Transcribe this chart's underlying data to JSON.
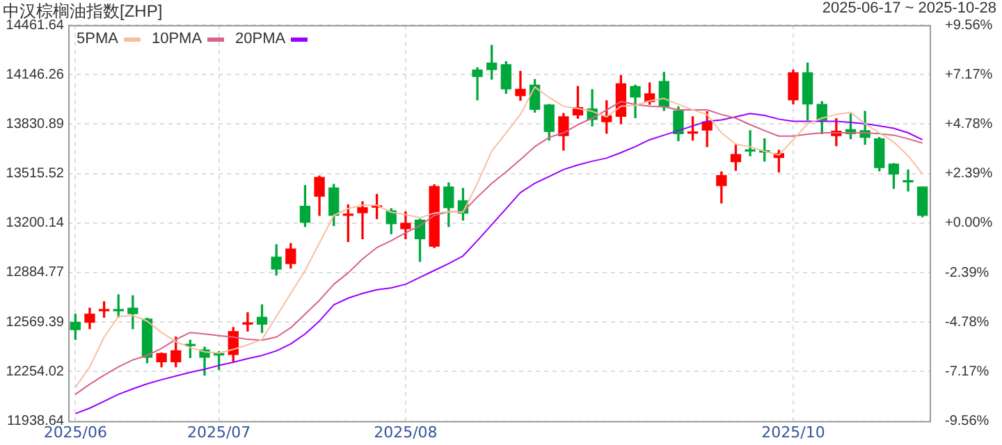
{
  "chart_data": {
    "type": "candlestick",
    "title": "中汉棕榈油指数[ZHP]",
    "subtitle": "2025-06-17 ~ 2025-10-28",
    "categories": [
      "2025/06",
      null,
      null,
      null,
      null,
      null,
      null,
      null,
      null,
      null,
      "2025/07",
      null,
      null,
      null,
      null,
      null,
      null,
      null,
      null,
      null,
      null,
      null,
      null,
      "2025/08",
      null,
      null,
      null,
      null,
      null,
      null,
      null,
      null,
      null,
      null,
      null,
      null,
      null,
      null,
      null,
      null,
      null,
      null,
      null,
      null,
      null,
      null,
      null,
      null,
      null,
      null,
      "2025/10",
      null,
      null,
      null,
      null,
      null,
      null,
      null,
      null,
      null
    ],
    "ohlc": [
      [
        12568,
        12620,
        12459,
        12521
      ],
      [
        12568,
        12658,
        12527,
        12620
      ],
      [
        12641,
        12699,
        12600,
        12647
      ],
      [
        12647,
        12743,
        12600,
        12641
      ],
      [
        12658,
        12737,
        12527,
        12623
      ],
      [
        12588,
        12594,
        12310,
        12345
      ],
      [
        12316,
        12372,
        12284,
        12369
      ],
      [
        12316,
        12474,
        12284,
        12387
      ],
      [
        12424,
        12454,
        12343,
        12419
      ],
      [
        12392,
        12410,
        12231,
        12345
      ],
      [
        12366,
        12381,
        12267,
        12360
      ],
      [
        12363,
        12535,
        12319,
        12509
      ],
      [
        12556,
        12629,
        12512,
        12562
      ],
      [
        12600,
        12679,
        12503,
        12556
      ],
      [
        12983,
        13062,
        12869,
        12907
      ],
      [
        12942,
        13070,
        12913,
        13035
      ],
      [
        13307,
        13439,
        13178,
        13205
      ],
      [
        13371,
        13500,
        13249,
        13491
      ],
      [
        13424,
        13447,
        13184,
        13249
      ],
      [
        13249,
        13316,
        13082,
        13257
      ],
      [
        13266,
        13336,
        13100,
        13298
      ],
      [
        13301,
        13383,
        13228,
        13310
      ],
      [
        13278,
        13292,
        13132,
        13196
      ],
      [
        13164,
        13272,
        13100,
        13199
      ],
      [
        13219,
        13225,
        12956,
        13100
      ],
      [
        13053,
        13444,
        13044,
        13433
      ],
      [
        13430,
        13456,
        13178,
        13298
      ],
      [
        13342,
        13421,
        13219,
        13263
      ],
      [
        14175,
        14190,
        13985,
        14134
      ],
      [
        14219,
        14333,
        14117,
        14178
      ],
      [
        14210,
        14228,
        14026,
        14055
      ],
      [
        14012,
        14166,
        13982,
        14052
      ],
      [
        14079,
        14114,
        13906,
        13924
      ],
      [
        13953,
        13956,
        13728,
        13784
      ],
      [
        13757,
        13898,
        13664,
        13877
      ],
      [
        13889,
        14070,
        13868,
        13936
      ],
      [
        13927,
        14050,
        13819,
        13860
      ],
      [
        13845,
        13979,
        13772,
        13883
      ],
      [
        13880,
        14140,
        13833,
        14088
      ],
      [
        14070,
        14079,
        13871,
        14003
      ],
      [
        13974,
        14093,
        13956,
        14023
      ],
      [
        14102,
        14161,
        13918,
        13941
      ],
      [
        13915,
        13941,
        13725,
        13769
      ],
      [
        13772,
        13877,
        13728,
        13781
      ],
      [
        13792,
        13909,
        13687,
        13845
      ],
      [
        13439,
        13526,
        13328,
        13503
      ],
      [
        13591,
        13702,
        13535,
        13637
      ],
      [
        13667,
        13789,
        13629,
        13658
      ],
      [
        13661,
        13737,
        13594,
        13652
      ],
      [
        13617,
        13664,
        13526,
        13643
      ],
      [
        13985,
        14175,
        13959,
        14158
      ],
      [
        14158,
        14219,
        13857,
        13959
      ],
      [
        13956,
        13974,
        13769,
        13854
      ],
      [
        13757,
        13865,
        13693,
        13786
      ],
      [
        13795,
        13895,
        13737,
        13769
      ],
      [
        13789,
        13912,
        13702,
        13746
      ],
      [
        13737,
        13746,
        13532,
        13553
      ],
      [
        13576,
        13579,
        13421,
        13512
      ],
      [
        13471,
        13538,
        13404,
        13462
      ],
      [
        13430,
        13430,
        13240,
        13249
      ]
    ],
    "colors": [
      "#00a83c",
      "#ff0000",
      "#ff0000",
      "#00a83c",
      "#00a83c",
      "#00a83c",
      "#ff0000",
      "#ff0000",
      "#00a83c",
      "#00a83c",
      "#00a83c",
      "#ff0000",
      "#ff0000",
      "#00a83c",
      "#00a83c",
      "#ff0000",
      "#00a83c",
      "#ff0000",
      "#00a83c",
      "#ff0000",
      "#ff0000",
      "#ff0000",
      "#00a83c",
      "#ff0000",
      "#00a83c",
      "#ff0000",
      "#00a83c",
      "#00a83c",
      "#00a83c",
      "#00a83c",
      "#00a83c",
      "#ff0000",
      "#00a83c",
      "#00a83c",
      "#ff0000",
      "#ff0000",
      "#00a83c",
      "#ff0000",
      "#ff0000",
      "#00a83c",
      "#ff0000",
      "#00a83c",
      "#00a83c",
      "#ff0000",
      "#ff0000",
      "#ff0000",
      "#ff0000",
      "#00a83c",
      "#00a83c",
      "#ff0000",
      "#ff0000",
      "#00a83c",
      "#00a83c",
      "#ff0000",
      "#00a83c",
      "#00a83c",
      "#00a83c",
      "#00a83c",
      "#00a83c",
      "#00a83c"
    ],
    "series": [
      {
        "name": "5PMA",
        "type": "line",
        "color": "#f8bf9f",
        "values": [
          12152,
          12284,
          12474,
          12605,
          12611,
          12576,
          12503,
          12445,
          12407,
          12380,
          12372,
          12395,
          12424,
          12459,
          12605,
          12752,
          12898,
          13073,
          13249,
          13292,
          13313,
          13313,
          13269,
          13254,
          13234,
          13263,
          13272,
          13269,
          13453,
          13658,
          13775,
          13892,
          14067,
          14000,
          13944,
          13930,
          13912,
          13877,
          13944,
          13950,
          13979,
          13994,
          13956,
          13921,
          13892,
          13775,
          13702,
          13687,
          13658,
          13634,
          13731,
          13833,
          13868,
          13892,
          13906,
          13833,
          13775,
          13716,
          13629,
          13512
        ]
      },
      {
        "name": "10PMA",
        "type": "line",
        "color": "#d9628a",
        "values": [
          12109,
          12173,
          12231,
          12284,
          12328,
          12357,
          12401,
          12459,
          12503,
          12494,
          12483,
          12474,
          12459,
          12454,
          12474,
          12533,
          12620,
          12708,
          12810,
          12883,
          12971,
          13044,
          13088,
          13138,
          13184,
          13249,
          13272,
          13272,
          13366,
          13453,
          13526,
          13605,
          13687,
          13746,
          13775,
          13827,
          13868,
          13921,
          13974,
          13956,
          13944,
          13941,
          13921,
          13921,
          13921,
          13892,
          13868,
          13827,
          13789,
          13754,
          13754,
          13766,
          13775,
          13775,
          13775,
          13775,
          13769,
          13760,
          13737,
          13710
        ]
      },
      {
        "name": "20PMA",
        "type": "line",
        "color": "#9900ff",
        "values": [
          11986,
          12021,
          12065,
          12109,
          12144,
          12176,
          12202,
          12226,
          12249,
          12269,
          12293,
          12313,
          12337,
          12357,
          12386,
          12430,
          12494,
          12576,
          12679,
          12722,
          12752,
          12775,
          12787,
          12810,
          12854,
          12898,
          12942,
          12991,
          13088,
          13190,
          13292,
          13395,
          13453,
          13497,
          13541,
          13570,
          13594,
          13614,
          13649,
          13687,
          13731,
          13760,
          13789,
          13819,
          13848,
          13857,
          13877,
          13898,
          13886,
          13862,
          13848,
          13848,
          13848,
          13848,
          13842,
          13833,
          13819,
          13804,
          13775,
          13731
        ]
      }
    ],
    "ylim": [
      11938.64,
      14461.64
    ],
    "yticks": [
      11938.64,
      12254.02,
      12569.39,
      12884.77,
      13200.14,
      13515.52,
      13830.89,
      14146.26,
      14461.64
    ],
    "y2lim": [
      -9.56,
      9.56
    ],
    "y2ticks": [
      {
        "value": -9.56,
        "label": "-9.56%"
      },
      {
        "value": -7.17,
        "label": "-7.17%"
      },
      {
        "value": -4.78,
        "label": "-4.78%"
      },
      {
        "value": -2.39,
        "label": "-2.39%"
      },
      {
        "value": 0,
        "label": "+0.00%"
      },
      {
        "value": 2.39,
        "label": "+2.39%"
      },
      {
        "value": 4.78,
        "label": "+4.78%"
      },
      {
        "value": 7.17,
        "label": "+7.17%"
      },
      {
        "value": 9.56,
        "label": "+9.56%"
      }
    ],
    "grid": true,
    "legend": "top left",
    "marker": "none"
  }
}
